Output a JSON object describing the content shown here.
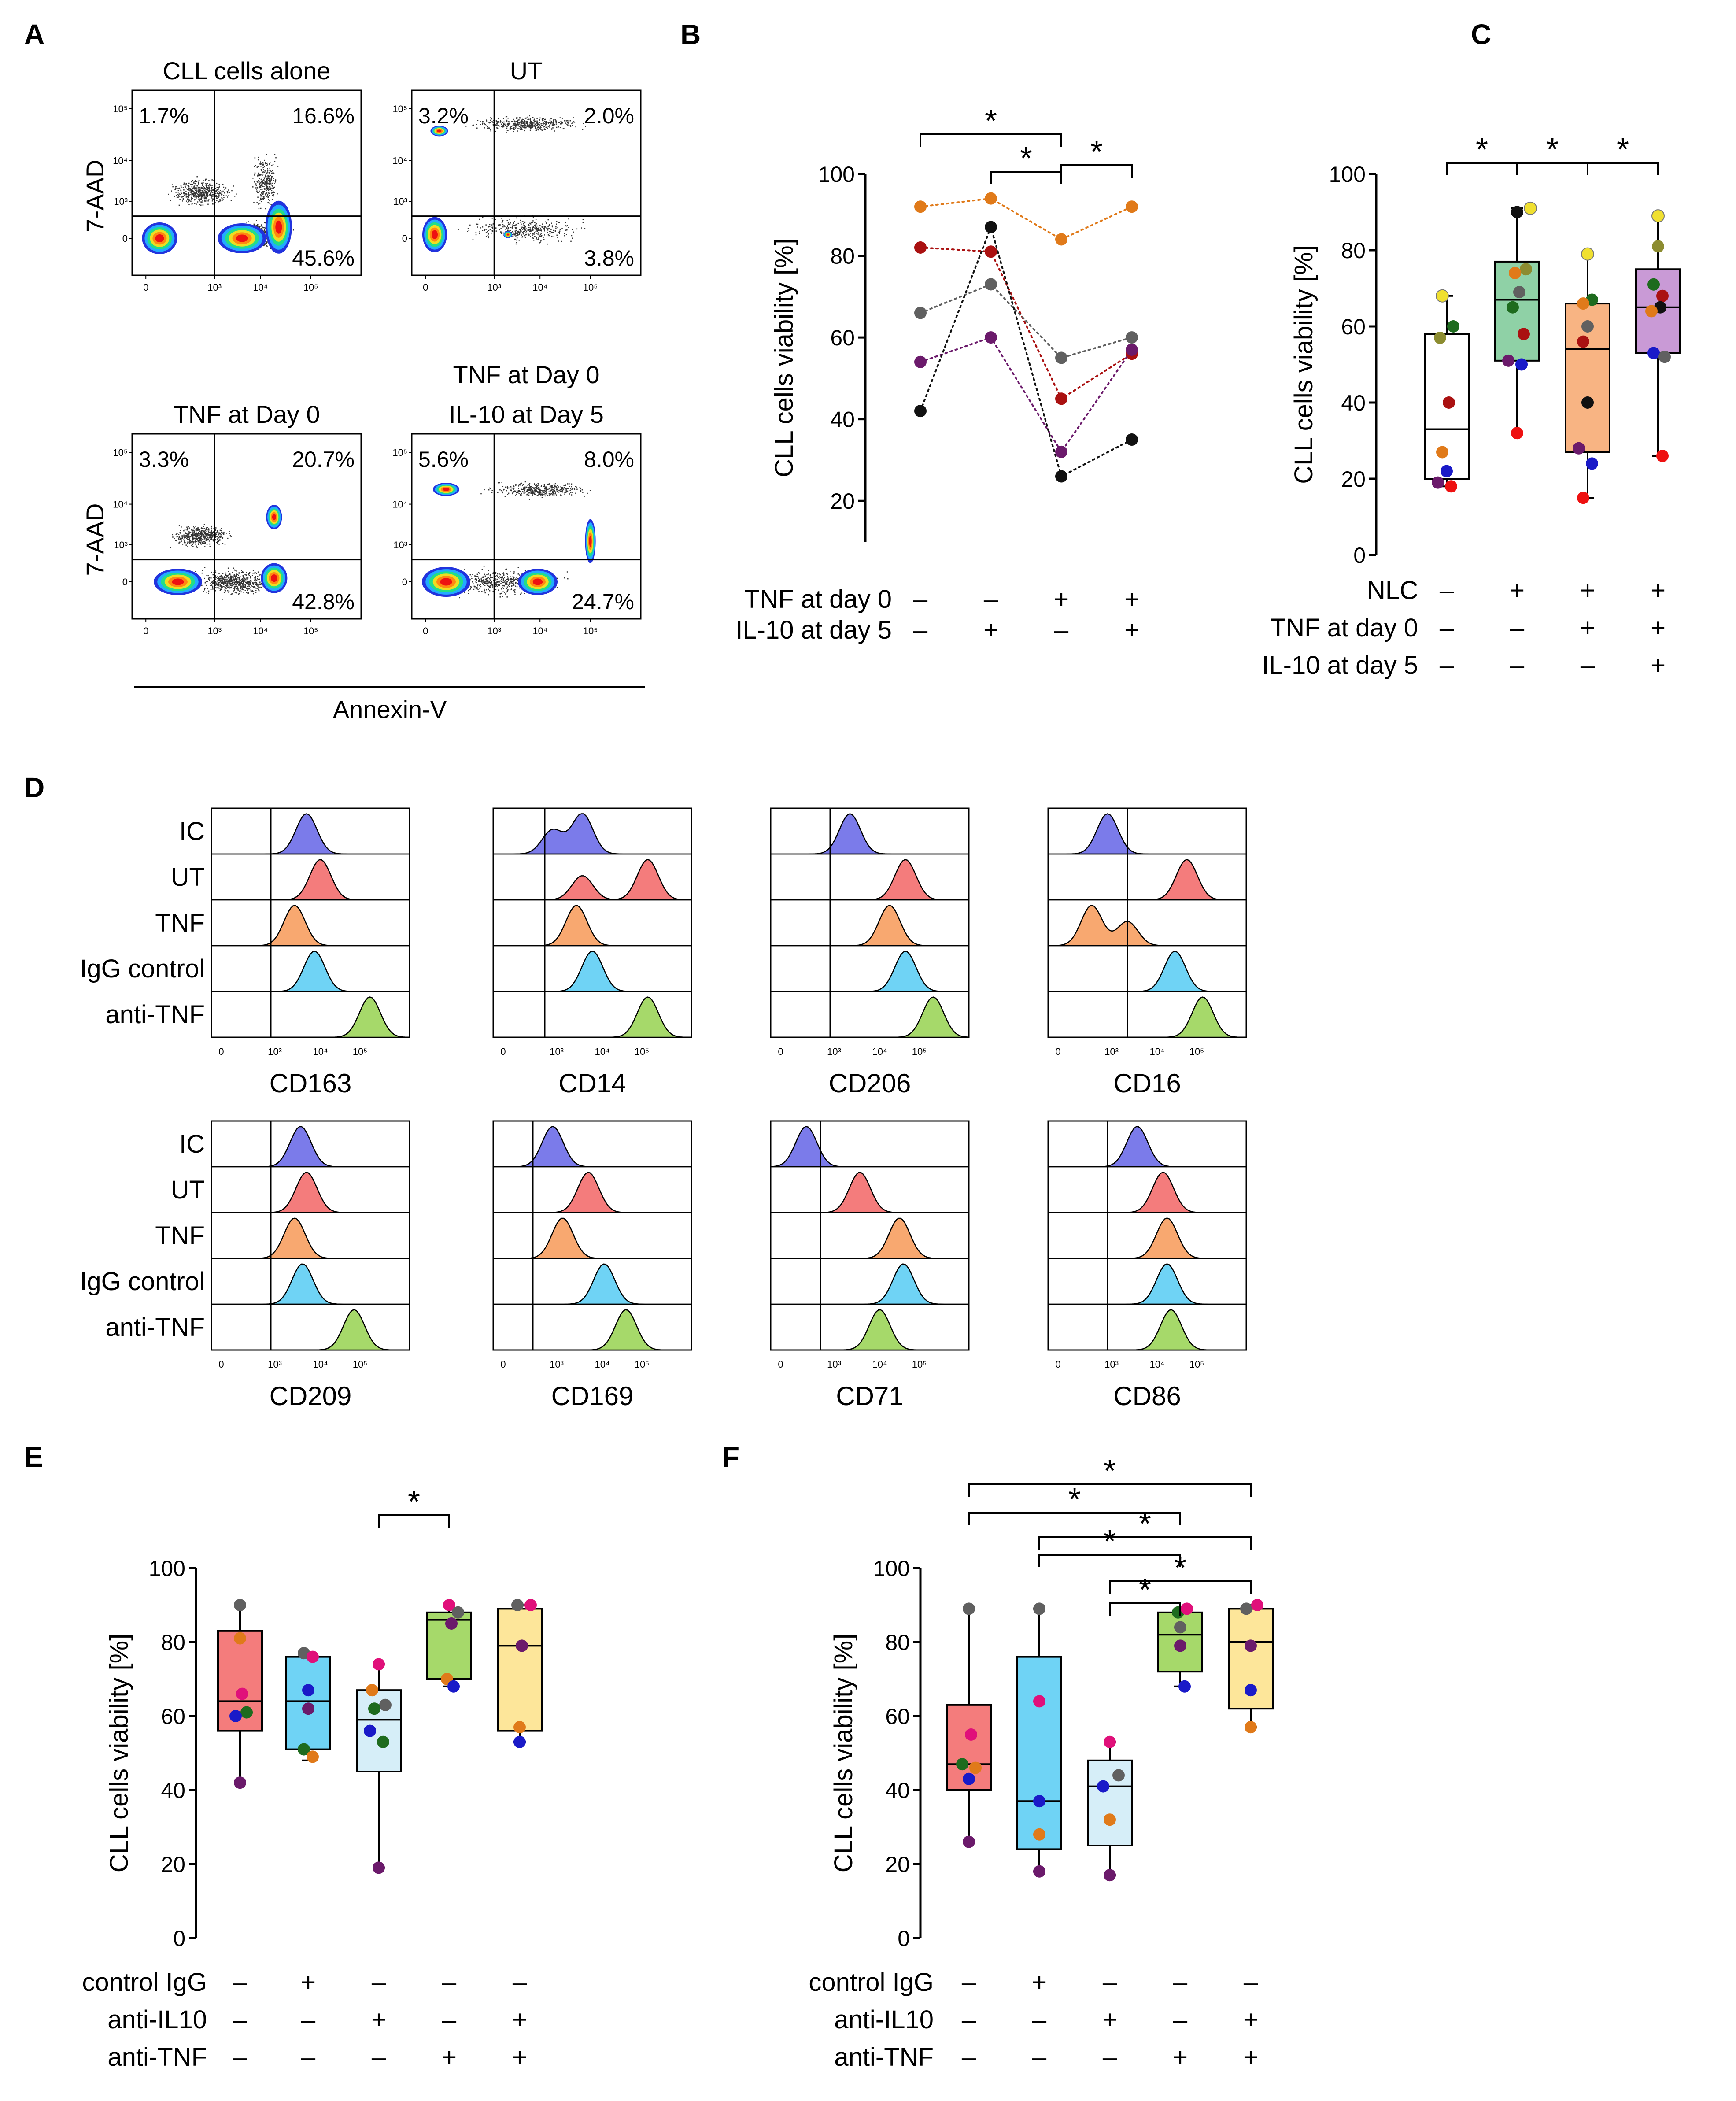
{
  "panel_letters": {
    "A": "A",
    "B": "B",
    "C": "C",
    "D": "D",
    "E": "E",
    "F": "F"
  },
  "colors": {
    "pink": "#f47c7c",
    "cyan": "#6fd3f5",
    "lightblue": "#d6eef8",
    "green": "#a6d96a",
    "yellow": "#fde69a",
    "ic": "#7b7bea",
    "ut": "#f47c7c",
    "tnf": "#f8a870",
    "igg": "#6fd3f5",
    "anti": "#a6d96a",
    "c_nlc": "#8fd1a6",
    "c_tnf": "#f8b483",
    "c_il10": "#c99ad6"
  },
  "flow": {
    "y_label": "7-AAD",
    "x_label": "Annexin-V",
    "x_ticks": [
      "0",
      "10³",
      "10⁴",
      "10⁵"
    ],
    "y_ticks": [
      "0",
      "10³",
      "10⁴",
      "10⁵"
    ],
    "plots": [
      {
        "title": "CLL cells alone",
        "tl": "1.7%",
        "tr": "16.6%",
        "br": "45.6%"
      },
      {
        "title": "UT",
        "tl": "3.2%",
        "tr": "2.0%",
        "br": "3.8%"
      },
      {
        "title": "TNF at Day 0",
        "tl": "3.3%",
        "tr": "20.7%",
        "br": "42.8%"
      },
      {
        "title": "TNF at Day 0",
        "title2": "IL-10 at Day 5",
        "tl": "5.6%",
        "tr": "8.0%",
        "br": "24.7%"
      }
    ]
  },
  "chart_data": [
    {
      "panel": "B",
      "type": "line",
      "ylabel": "CLL cells viability [%]",
      "ylim": [
        10,
        100
      ],
      "yticks": [
        "20",
        "40",
        "60",
        "80",
        "100"
      ],
      "row_labels": [
        "TNF at day 0",
        "IL-10 at day 5"
      ],
      "conditions": [
        [
          "–",
          "–"
        ],
        [
          "–",
          "+"
        ],
        [
          "+",
          "–"
        ],
        [
          "+",
          "+"
        ]
      ],
      "series": [
        {
          "color": "#e07a1a",
          "values": [
            92,
            94,
            84,
            92
          ]
        },
        {
          "color": "#aa1111",
          "values": [
            82,
            81,
            45,
            56
          ]
        },
        {
          "color": "#606060",
          "values": [
            66,
            73,
            55,
            60
          ]
        },
        {
          "color": "#6b1a6b",
          "values": [
            54,
            60,
            32,
            57
          ]
        },
        {
          "color": "#111111",
          "values": [
            42,
            87,
            26,
            35
          ]
        }
      ],
      "significance": [
        {
          "from": 0,
          "to": 2,
          "label": "*"
        },
        {
          "from": 1,
          "to": 2,
          "label": "*"
        },
        {
          "from": 2,
          "to": 3,
          "label": "*"
        }
      ]
    },
    {
      "panel": "C",
      "type": "box",
      "ylabel": "CLL cells viability [%]",
      "ylim": [
        0,
        100
      ],
      "yticks": [
        "0",
        "20",
        "40",
        "60",
        "80",
        "100"
      ],
      "row_labels": [
        "NLC",
        "TNF at day 0",
        "IL-10 at day 5"
      ],
      "conditions": [
        [
          "–",
          "–",
          "–"
        ],
        [
          "+",
          "–",
          "–"
        ],
        [
          "+",
          "+",
          "–"
        ],
        [
          "+",
          "+",
          "+"
        ]
      ],
      "boxes": [
        {
          "fill": "#ffffff",
          "min": 18,
          "q1": 20,
          "median": 33,
          "q3": 58,
          "max": 68,
          "points": [
            [
              -0.1,
              68,
              "#f0e030"
            ],
            [
              0.15,
              60,
              "#1e6b1e"
            ],
            [
              -0.15,
              57,
              "#8c8c30"
            ],
            [
              0.05,
              40,
              "#aa1111"
            ],
            [
              -0.1,
              27,
              "#e07a1a"
            ],
            [
              0,
              22,
              "#1a1ac8"
            ],
            [
              -0.2,
              19,
              "#6b1a6b"
            ],
            [
              0.1,
              18,
              "#ee1111"
            ]
          ]
        },
        {
          "fill": "#8fd1a6",
          "min": 32,
          "q1": 51,
          "median": 67,
          "q3": 77,
          "max": 91,
          "points": [
            [
              0.3,
              91,
              "#f0e030"
            ],
            [
              0,
              90,
              "#111111"
            ],
            [
              0.2,
              75,
              "#8c8c30"
            ],
            [
              -0.05,
              74,
              "#e07a1a"
            ],
            [
              0.05,
              69,
              "#606060"
            ],
            [
              -0.1,
              65,
              "#1e6b1e"
            ],
            [
              0.15,
              58,
              "#aa1111"
            ],
            [
              -0.2,
              51,
              "#6b1a6b"
            ],
            [
              0.1,
              50,
              "#1a1ac8"
            ],
            [
              0,
              32,
              "#ee1111"
            ]
          ]
        },
        {
          "fill": "#f8b483",
          "min": 15,
          "q1": 27,
          "median": 54,
          "q3": 66,
          "max": 79,
          "points": [
            [
              0,
              79,
              "#f0e030"
            ],
            [
              0.1,
              67,
              "#1e6b1e"
            ],
            [
              -0.1,
              66,
              "#e07a1a"
            ],
            [
              0,
              60,
              "#606060"
            ],
            [
              -0.1,
              56,
              "#aa1111"
            ],
            [
              0,
              40,
              "#111111"
            ],
            [
              -0.2,
              28,
              "#6b1a6b"
            ],
            [
              0.1,
              24,
              "#1a1ac8"
            ],
            [
              -0.1,
              15,
              "#ee1111"
            ]
          ]
        },
        {
          "fill": "#c99ad6",
          "min": 26,
          "q1": 53,
          "median": 65,
          "q3": 75,
          "max": 89,
          "points": [
            [
              0,
              89,
              "#f0e030"
            ],
            [
              0,
              81,
              "#8c8c30"
            ],
            [
              -0.1,
              71,
              "#1e6b1e"
            ],
            [
              0.1,
              68,
              "#aa1111"
            ],
            [
              0.05,
              65,
              "#111111"
            ],
            [
              -0.15,
              64,
              "#e07a1a"
            ],
            [
              -0.1,
              53,
              "#1a1ac8"
            ],
            [
              0.15,
              52,
              "#606060"
            ],
            [
              0.1,
              26,
              "#ee1111"
            ]
          ]
        }
      ],
      "significance": [
        {
          "from": 0,
          "to": 1,
          "label": "*"
        },
        {
          "from": 1,
          "to": 2,
          "label": "*"
        },
        {
          "from": 2,
          "to": 3,
          "label": "*"
        }
      ]
    },
    {
      "panel": "E",
      "type": "box",
      "ylabel": "CLL cells viability [%]",
      "ylim": [
        0,
        100
      ],
      "yticks": [
        "0",
        "20",
        "40",
        "60",
        "80",
        "100"
      ],
      "row_labels": [
        "control IgG",
        "anti-IL10",
        "anti-TNF"
      ],
      "conditions": [
        [
          "–",
          "–",
          "–"
        ],
        [
          "+",
          "–",
          "–"
        ],
        [
          "–",
          "+",
          "–"
        ],
        [
          "–",
          "–",
          "+"
        ],
        [
          "–",
          "+",
          "+"
        ]
      ],
      "boxes": [
        {
          "fill": "#f47c7c",
          "min": 42,
          "q1": 56,
          "median": 64,
          "q3": 83,
          "max": 90,
          "points": [
            [
              0,
              90,
              "#606060"
            ],
            [
              0,
              81,
              "#e07a1a"
            ],
            [
              0.05,
              66,
              "#e0107a"
            ],
            [
              0.15,
              61,
              "#1e6b1e"
            ],
            [
              -0.1,
              60,
              "#1a1ac8"
            ],
            [
              0,
              42,
              "#6b1a6b"
            ]
          ]
        },
        {
          "fill": "#6fd3f5",
          "min": 48,
          "q1": 51,
          "median": 64,
          "q3": 76,
          "max": 77,
          "points": [
            [
              -0.1,
              77,
              "#606060"
            ],
            [
              0.1,
              76,
              "#e0107a"
            ],
            [
              0,
              67,
              "#1a1ac8"
            ],
            [
              0,
              62,
              "#6b1a6b"
            ],
            [
              -0.1,
              51,
              "#1e6b1e"
            ],
            [
              0.1,
              49,
              "#e07a1a"
            ]
          ]
        },
        {
          "fill": "#d6eef8",
          "min": 19,
          "q1": 45,
          "median": 59,
          "q3": 67,
          "max": 74,
          "points": [
            [
              0,
              74,
              "#e0107a"
            ],
            [
              -0.15,
              67,
              "#e07a1a"
            ],
            [
              0.15,
              63,
              "#606060"
            ],
            [
              -0.1,
              62,
              "#1e6b1e"
            ],
            [
              -0.2,
              56,
              "#1a1ac8"
            ],
            [
              0.1,
              53,
              "#1e6b1e"
            ],
            [
              0,
              19,
              "#6b1a6b"
            ]
          ]
        },
        {
          "fill": "#a6d96a",
          "min": 68,
          "q1": 70,
          "median": 86,
          "q3": 88,
          "max": 90,
          "points": [
            [
              0,
              90,
              "#e0107a"
            ],
            [
              0.2,
              88,
              "#606060"
            ],
            [
              0.05,
              85,
              "#6b1a6b"
            ],
            [
              -0.05,
              70,
              "#e07a1a"
            ],
            [
              0.1,
              68,
              "#1a1ac8"
            ]
          ]
        },
        {
          "fill": "#fde69a",
          "min": 53,
          "q1": 56,
          "median": 79,
          "q3": 89,
          "max": 90,
          "points": [
            [
              -0.05,
              90,
              "#606060"
            ],
            [
              0.25,
              90,
              "#e0107a"
            ],
            [
              0.05,
              79,
              "#6b1a6b"
            ],
            [
              0,
              57,
              "#e07a1a"
            ],
            [
              0,
              53,
              "#1a1ac8"
            ]
          ]
        }
      ],
      "significance": [
        {
          "from": 2,
          "to": 3,
          "label": "*"
        }
      ]
    },
    {
      "panel": "F",
      "type": "box",
      "ylabel": "CLL cells viability [%]",
      "ylim": [
        0,
        100
      ],
      "yticks": [
        "0",
        "20",
        "40",
        "60",
        "80",
        "100"
      ],
      "row_labels": [
        "control IgG",
        "anti-IL10",
        "anti-TNF"
      ],
      "conditions": [
        [
          "–",
          "–",
          "–"
        ],
        [
          "+",
          "–",
          "–"
        ],
        [
          "–",
          "+",
          "–"
        ],
        [
          "–",
          "–",
          "+"
        ],
        [
          "–",
          "+",
          "+"
        ]
      ],
      "boxes": [
        {
          "fill": "#f47c7c",
          "min": 26,
          "q1": 40,
          "median": 47,
          "q3": 63,
          "max": 89,
          "points": [
            [
              0,
              89,
              "#606060"
            ],
            [
              0.05,
              55,
              "#e0107a"
            ],
            [
              -0.15,
              47,
              "#1e6b1e"
            ],
            [
              0.15,
              46,
              "#e07a1a"
            ],
            [
              0,
              43,
              "#1a1ac8"
            ],
            [
              0,
              26,
              "#6b1a6b"
            ]
          ]
        },
        {
          "fill": "#6fd3f5",
          "min": 18,
          "q1": 24,
          "median": 37,
          "q3": 76,
          "max": 89,
          "points": [
            [
              0,
              89,
              "#606060"
            ],
            [
              0,
              64,
              "#e0107a"
            ],
            [
              0,
              37,
              "#1a1ac8"
            ],
            [
              0,
              28,
              "#e07a1a"
            ],
            [
              0,
              18,
              "#6b1a6b"
            ]
          ]
        },
        {
          "fill": "#d6eef8",
          "min": 17,
          "q1": 25,
          "median": 41,
          "q3": 48,
          "max": 53,
          "points": [
            [
              0,
              53,
              "#e0107a"
            ],
            [
              0.2,
              44,
              "#606060"
            ],
            [
              -0.15,
              41,
              "#1a1ac8"
            ],
            [
              0,
              32,
              "#e07a1a"
            ],
            [
              0,
              17,
              "#6b1a6b"
            ]
          ]
        },
        {
          "fill": "#a6d96a",
          "min": 68,
          "q1": 72,
          "median": 82,
          "q3": 88,
          "max": 89,
          "points": [
            [
              -0.05,
              88,
              "#1e6b1e"
            ],
            [
              0.15,
              89,
              "#e0107a"
            ],
            [
              0,
              84,
              "#606060"
            ],
            [
              0,
              79,
              "#6b1a6b"
            ],
            [
              0.1,
              68,
              "#1a1ac8"
            ]
          ]
        },
        {
          "fill": "#fde69a",
          "min": 57,
          "q1": 62,
          "median": 80,
          "q3": 89,
          "max": 90,
          "points": [
            [
              -0.1,
              89,
              "#606060"
            ],
            [
              0.15,
              90,
              "#e0107a"
            ],
            [
              0,
              79,
              "#6b1a6b"
            ],
            [
              0,
              67,
              "#1a1ac8"
            ],
            [
              0,
              57,
              "#e07a1a"
            ]
          ]
        }
      ],
      "significance": [
        {
          "from": 0,
          "to": 4,
          "label": "*"
        },
        {
          "from": 0,
          "to": 3,
          "label": "*"
        },
        {
          "from": 1,
          "to": 4,
          "label": "*"
        },
        {
          "from": 1,
          "to": 3,
          "label": "*"
        },
        {
          "from": 2,
          "to": 4,
          "label": "*"
        },
        {
          "from": 2,
          "to": 3,
          "label": "*"
        }
      ]
    }
  ],
  "histograms": {
    "row_labels": [
      "IC",
      "UT",
      "TNF",
      "IgG control",
      "anti-TNF"
    ],
    "x_ticks": [
      "0",
      "10³",
      "10⁴",
      "10⁵"
    ],
    "markers": [
      {
        "name": "CD163",
        "peaks": [
          [
            0.48
          ],
          [
            0.55
          ],
          [
            0.42
          ],
          [
            0.52
          ],
          [
            0.8
          ]
        ]
      },
      {
        "name": "CD14",
        "peaks": [
          [
            0.45,
            0.3
          ],
          [
            0.78,
            0.45
          ],
          [
            0.42
          ],
          [
            0.5
          ],
          [
            0.78
          ]
        ]
      },
      {
        "name": "CD206",
        "peaks": [
          [
            0.4
          ],
          [
            0.68
          ],
          [
            0.6
          ],
          [
            0.68
          ],
          [
            0.82
          ]
        ]
      },
      {
        "name": "CD16",
        "peaks": [
          [
            0.3
          ],
          [
            0.7
          ],
          [
            0.22,
            0.4
          ],
          [
            0.64
          ],
          [
            0.78
          ]
        ]
      },
      {
        "name": "CD209",
        "peaks": [
          [
            0.45
          ],
          [
            0.48
          ],
          [
            0.42
          ],
          [
            0.46
          ],
          [
            0.72
          ]
        ]
      },
      {
        "name": "CD169",
        "peaks": [
          [
            0.3
          ],
          [
            0.48
          ],
          [
            0.35
          ],
          [
            0.56
          ],
          [
            0.67
          ]
        ]
      },
      {
        "name": "CD71",
        "peaks": [
          [
            0.18
          ],
          [
            0.45
          ],
          [
            0.65
          ],
          [
            0.67
          ],
          [
            0.55
          ]
        ]
      },
      {
        "name": "CD86",
        "peaks": [
          [
            0.45
          ],
          [
            0.58
          ],
          [
            0.6
          ],
          [
            0.6
          ],
          [
            0.62
          ]
        ]
      }
    ]
  }
}
